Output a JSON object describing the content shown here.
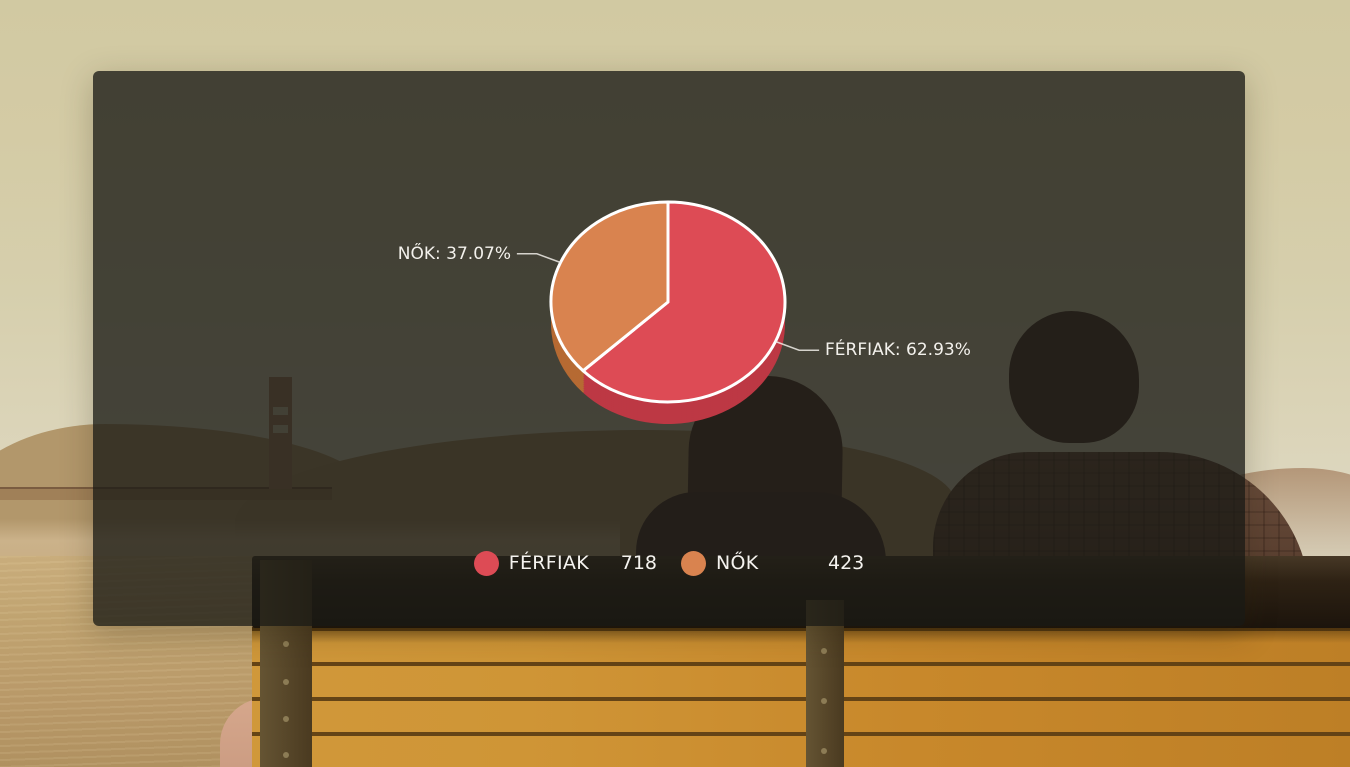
{
  "chart_data": {
    "type": "pie",
    "effect": "3d",
    "start_angle": "top",
    "direction": "clockwise",
    "title": "",
    "series": [
      {
        "id": "ferfiak",
        "name": "FÉRFIAK",
        "value": 718,
        "percent": 62.93,
        "color": "#dd4b55",
        "side_color": "#bd3844",
        "callout": "FÉRFIAK: 62.93%"
      },
      {
        "id": "nok",
        "name": "NŐK",
        "value": 423,
        "percent": 37.07,
        "color": "#d9834f",
        "side_color": "#b66a33",
        "callout": "NŐK: 37.07%"
      }
    ],
    "legend": {
      "position": "bottom",
      "items": [
        {
          "label": "FÉRFIAK",
          "value": "718",
          "color": "#dd4b55"
        },
        {
          "label": "NŐK",
          "value": "423",
          "color": "#d9834f"
        }
      ]
    },
    "stroke_color": "#ffffff",
    "connector_color": "#efece6"
  }
}
